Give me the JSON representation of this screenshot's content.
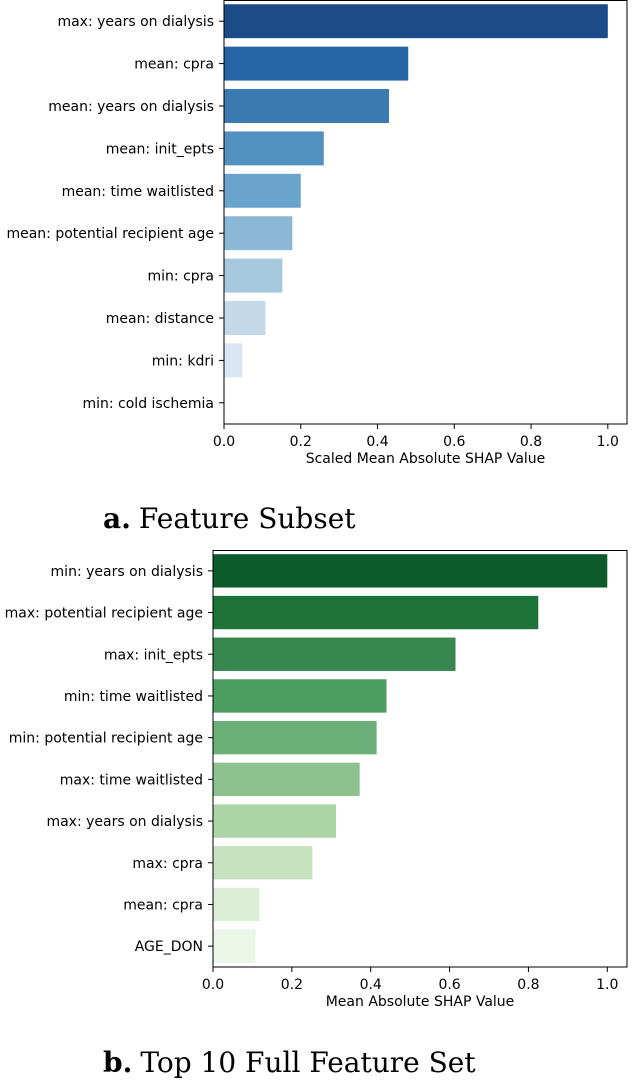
{
  "chart_data": [
    {
      "type": "bar",
      "orientation": "horizontal",
      "caption_letter": "a.",
      "caption_text": "Feature Subset",
      "xlabel": "Scaled Mean Absolute SHAP Value",
      "ylabel": "",
      "xlim": [
        0,
        1.05
      ],
      "xticks": [
        0.0,
        0.2,
        0.4,
        0.6,
        0.8,
        1.0
      ],
      "xtick_labels": [
        "0.0",
        "0.2",
        "0.4",
        "0.6",
        "0.8",
        "1.0"
      ],
      "grid": false,
      "categories": [
        "max: years on dialysis",
        "mean: cpra",
        "mean: years on dialysis",
        "mean: init_epts",
        "mean: time waitlisted",
        "mean: potential recipient age",
        "min: cpra",
        "mean: distance",
        "min: kdri",
        "min: cold ischemia"
      ],
      "values": [
        1.0,
        0.48,
        0.43,
        0.26,
        0.2,
        0.178,
        0.152,
        0.108,
        0.048,
        0.0
      ],
      "colors": [
        "#1c4c88",
        "#2565a5",
        "#3b79b0",
        "#5290bf",
        "#6aa3cb",
        "#8bb8d5",
        "#a6c8de",
        "#c3d9ea",
        "#d9e5f3",
        "#f2f6fb"
      ]
    },
    {
      "type": "bar",
      "orientation": "horizontal",
      "caption_letter": "b.",
      "caption_text": "Top 10 Full Feature Set",
      "xlabel": "Mean Absolute SHAP Value",
      "ylabel": "",
      "xlim": [
        0,
        1.05
      ],
      "xticks": [
        0.0,
        0.2,
        0.4,
        0.6,
        0.8,
        1.0
      ],
      "xtick_labels": [
        "0.0",
        "0.2",
        "0.4",
        "0.6",
        "0.8",
        "1.0"
      ],
      "grid": false,
      "categories": [
        "min: years on dialysis",
        "max: potential recipient age",
        "max: init_epts",
        "min: time waitlisted",
        "min: potential recipient age",
        "max: time waitlisted",
        "max: years on dialysis",
        "max: cpra",
        "mean: cpra",
        "AGE_DON"
      ],
      "values": [
        1.0,
        0.825,
        0.615,
        0.44,
        0.415,
        0.372,
        0.312,
        0.252,
        0.118,
        0.108
      ],
      "colors": [
        "#0d5a2b",
        "#1d7337",
        "#37874f",
        "#4d9d61",
        "#6bb078",
        "#8dc28e",
        "#abd5a4",
        "#c6e2bf",
        "#dbeed6",
        "#ebf5e8"
      ]
    }
  ]
}
